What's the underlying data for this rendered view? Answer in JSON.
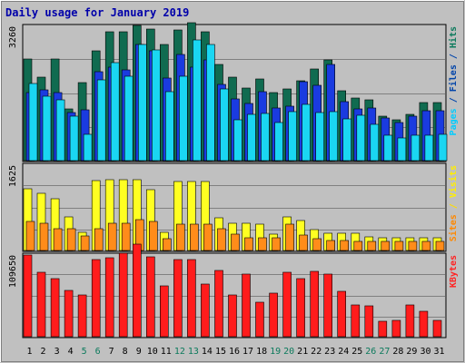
{
  "chart_data": {
    "type": "bar",
    "title": "Daily usage for January 2019",
    "categories": [
      "1",
      "2",
      "3",
      "4",
      "5",
      "6",
      "7",
      "8",
      "9",
      "10",
      "11",
      "12",
      "13",
      "14",
      "15",
      "16",
      "17",
      "18",
      "19",
      "20",
      "21",
      "22",
      "23",
      "24",
      "25",
      "26",
      "27",
      "28",
      "29",
      "30",
      "31"
    ],
    "weekend_days": [
      "5",
      "6",
      "12",
      "13",
      "19",
      "20",
      "26",
      "27"
    ],
    "panels": [
      {
        "id": "top",
        "ymax_label": "3260",
        "ymax": 3260,
        "right_label_parts": [
          {
            "text": "Pages",
            "color": "#00ccff"
          },
          {
            "text": " / ",
            "color": "#0044aa"
          },
          {
            "text": "Files",
            "color": "#0044aa"
          },
          {
            "text": " / ",
            "color": "#0044aa"
          },
          {
            "text": "Hits",
            "color": "#0b7a5c"
          }
        ],
        "series": [
          {
            "name": "Hits",
            "color": "#106b50",
            "values": [
              2480,
              2030,
              2480,
              1270,
              1910,
              2680,
              3140,
              3140,
              3310,
              3220,
              2840,
              3200,
              3380,
              3150,
              2350,
              2050,
              1780,
              1990,
              1660,
              1750,
              1960,
              2240,
              2460,
              1700,
              1530,
              1490,
              1090,
              990,
              1130,
              1410,
              1410
            ]
          },
          {
            "name": "Files",
            "color": "#1a3be0",
            "values": [
              1660,
              1740,
              1660,
              1180,
              1240,
              2180,
              2290,
              2220,
              2840,
              2680,
              2020,
              2600,
              2290,
              2470,
              1860,
              1510,
              1400,
              1690,
              1290,
              1330,
              1930,
              1850,
              2360,
              1440,
              1260,
              1280,
              1040,
              930,
              1080,
              1230,
              1230
            ]
          },
          {
            "name": "Pages",
            "color": "#1ad6f2",
            "values": [
              1890,
              1570,
              1480,
              1090,
              640,
              1980,
              2400,
              2070,
              2830,
              2700,
              1690,
              2070,
              2960,
              2830,
              1760,
              1000,
              1140,
              1160,
              930,
              1200,
              1370,
              1170,
              1190,
              1010,
              1100,
              880,
              610,
              560,
              620,
              620,
              650
            ]
          }
        ]
      },
      {
        "id": "middle",
        "ymax_label": "1625",
        "ymax": 1625,
        "right_label_parts": [
          {
            "text": "Sites",
            "color": "#ff8800"
          },
          {
            "text": " / ",
            "color": "#ffdd00"
          },
          {
            "text": "Visits",
            "color": "#ffee00"
          }
        ],
        "series": [
          {
            "name": "Visits",
            "color": "#ffff22",
            "values": [
              1180,
              1100,
              1000,
              640,
              350,
              1340,
              1370,
              1370,
              1370,
              1170,
              350,
              1320,
              1320,
              1320,
              630,
              520,
              520,
              500,
              310,
              640,
              580,
              410,
              330,
              330,
              330,
              260,
              240,
              240,
              240,
              240,
              240
            ]
          },
          {
            "name": "Sites",
            "color": "#ff8c1a",
            "values": [
              560,
              520,
              420,
              420,
              280,
              420,
              520,
              520,
              590,
              560,
              230,
              500,
              500,
              500,
              420,
              310,
              240,
              240,
              240,
              500,
              290,
              220,
              200,
              200,
              180,
              180,
              180,
              180,
              180,
              180,
              180
            ]
          }
        ]
      },
      {
        "id": "bottom",
        "ymax_label": "109650",
        "ymax": 109650,
        "right_label_parts": [
          {
            "text": "KBytes",
            "color": "#ff2222"
          }
        ],
        "series": [
          {
            "name": "KBytes",
            "color": "#ff1c1c",
            "values": [
              111290,
              86890,
              78760,
              63310,
              56810,
              104390,
              107640,
              113330,
              125520,
              108450,
              69020,
              104390,
              104390,
              71460,
              90160,
              56810,
              85260,
              47150,
              58530,
              86890,
              78760,
              88930,
              84450,
              61280,
              43390,
              41760,
              20620,
              22060,
              43390,
              34460,
              22060
            ]
          }
        ]
      }
    ],
    "grid": true,
    "legend": "right-vertical"
  }
}
